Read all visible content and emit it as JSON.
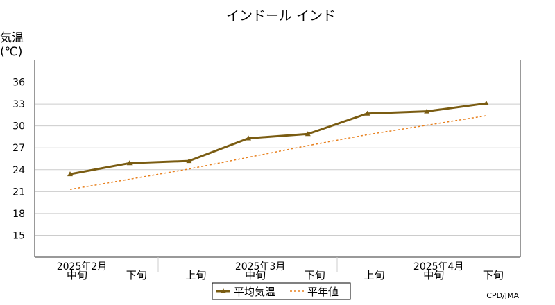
{
  "chart_data": {
    "type": "line",
    "title": "インドール インド",
    "ylabel_line1": "気温",
    "ylabel_line2": "(℃)",
    "ylim": [
      12,
      39
    ],
    "yticks": [
      15,
      18,
      21,
      24,
      27,
      30,
      33,
      36
    ],
    "categories": [
      "中旬",
      "下旬",
      "上旬",
      "中旬",
      "下旬",
      "上旬",
      "中旬",
      "下旬"
    ],
    "month_labels": [
      {
        "label": "2025年2月",
        "category_index": 0
      },
      {
        "label": "2025年3月",
        "category_index": 3
      },
      {
        "label": "2025年4月",
        "category_index": 6
      }
    ],
    "series": [
      {
        "name": "平均気温",
        "values": [
          23.4,
          24.9,
          25.2,
          28.3,
          28.9,
          31.7,
          32.0,
          33.1
        ],
        "color": "#7a5c12",
        "style": "solid",
        "marker": "triangle"
      },
      {
        "name": "平年値",
        "values": [
          21.3,
          22.7,
          24.1,
          25.7,
          27.3,
          28.8,
          30.1,
          31.4
        ],
        "color": "#e8801e",
        "style": "dotted"
      }
    ],
    "grid": true,
    "legend": "bottom-center",
    "source": "CPD/JMA",
    "colors": {
      "grid": "#cccccc",
      "frame": "#999999"
    }
  }
}
